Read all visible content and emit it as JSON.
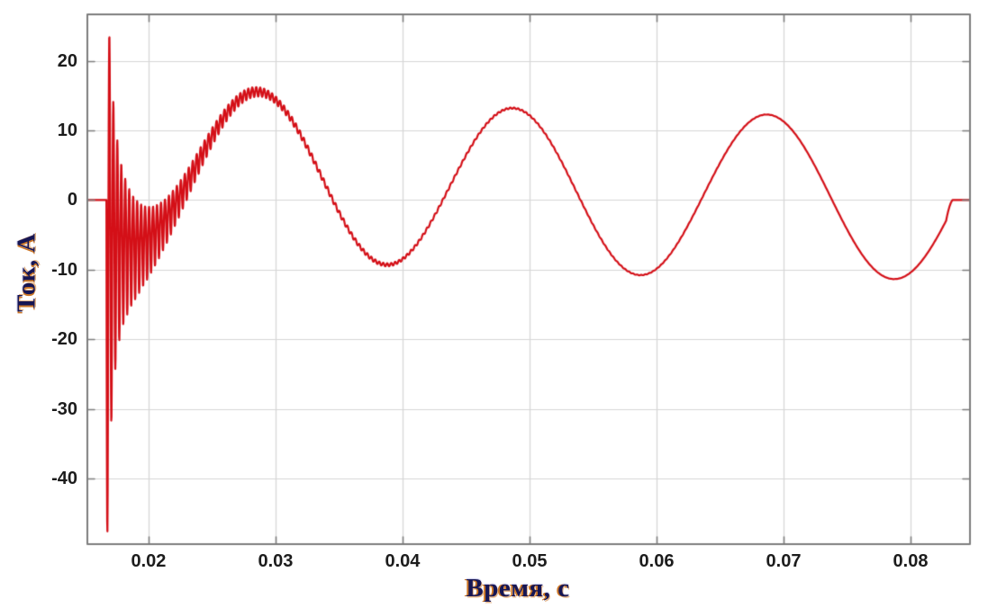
{
  "figure": {
    "background": "#ffffff"
  },
  "chart_data": {
    "type": "line",
    "title": "",
    "xlabel": "Время, с",
    "ylabel": "Ток, А",
    "x_axis": {
      "min": 0.01518,
      "max": 0.08468,
      "ticks": [
        0.02,
        0.03,
        0.04,
        0.05,
        0.06,
        0.07,
        0.08
      ],
      "tick_labels": [
        "0.02",
        "0.03",
        "0.04",
        "0.05",
        "0.06",
        "0.07",
        "0.08"
      ]
    },
    "y_axis": {
      "min": -49.4,
      "max": 26.65,
      "ticks": [
        20,
        10,
        0,
        -10,
        -20,
        -30,
        -40
      ],
      "tick_labels": [
        "20",
        "10",
        "0",
        "-10",
        "-20",
        "-30",
        "-40"
      ]
    },
    "grid": true,
    "box": true,
    "legend": "none",
    "colors": {
      "line": "#d40f17",
      "grid": "#d6d6d6",
      "axis_border": "#7d7d7d",
      "tick_text": "#1c1c1c",
      "axis_label_text": "#161654",
      "axis_label_glow": "#cd7828",
      "background": "#ffffff"
    },
    "series": [
      {
        "name": "ток",
        "color": "#d40f17",
        "line_width": 2.2,
        "model": {
          "zero_before_s": 0.01668,
          "zero_after_s": 0.0833,
          "end_ramp_s": 0.0005,
          "sample_step_s": 2e-05,
          "fundamental": {
            "freq_hz": 50,
            "amplitude_a": 11.7,
            "peak_time_s": 0.0287,
            "dc_offset_a": 6.95,
            "dc_decay_tau_s": 0.0208
          },
          "switching": {
            "freq_hz": 3200,
            "pos_envelope": [
              [
                26,
                0.00045
              ],
              [
                11,
                0.0024
              ],
              [
                1.4,
                0.012
              ]
            ],
            "neg_envelope": [
              [
                33,
                0.0004
              ],
              [
                17,
                0.0028
              ],
              [
                1.4,
                0.012
              ]
            ]
          }
        },
        "key_points": [
          {
            "t": 0.0167,
            "i": 0
          },
          {
            "t": 0.0169,
            "i": -47.5
          },
          {
            "t": 0.0172,
            "i": 25.5
          },
          {
            "t": 0.0287,
            "i": 15.6
          },
          {
            "t": 0.0386,
            "i": -9.6
          },
          {
            "t": 0.0487,
            "i": 13.0
          },
          {
            "t": 0.0585,
            "i": -10.5
          },
          {
            "t": 0.0689,
            "i": 12.4
          },
          {
            "t": 0.0785,
            "i": -10.9
          },
          {
            "t": 0.0833,
            "i": 0
          }
        ]
      }
    ]
  }
}
